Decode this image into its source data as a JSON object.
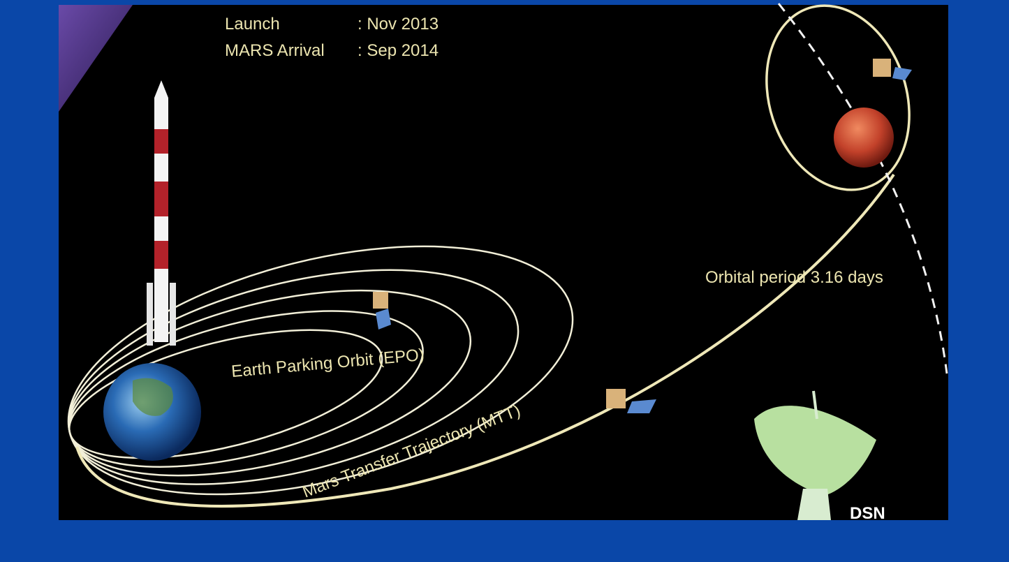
{
  "launch_info": [
    {
      "label": "Launch",
      "value": ": Nov 2013"
    },
    {
      "label": "MARS Arrival",
      "value": ": Sep 2014"
    }
  ],
  "labels": {
    "orbital_period": "Orbital period 3.16 days",
    "epo": "Earth Parking Orbit (EPO)",
    "mtt": "Mars Transfer Trajectory (MTT)",
    "dsn": "DSN"
  }
}
